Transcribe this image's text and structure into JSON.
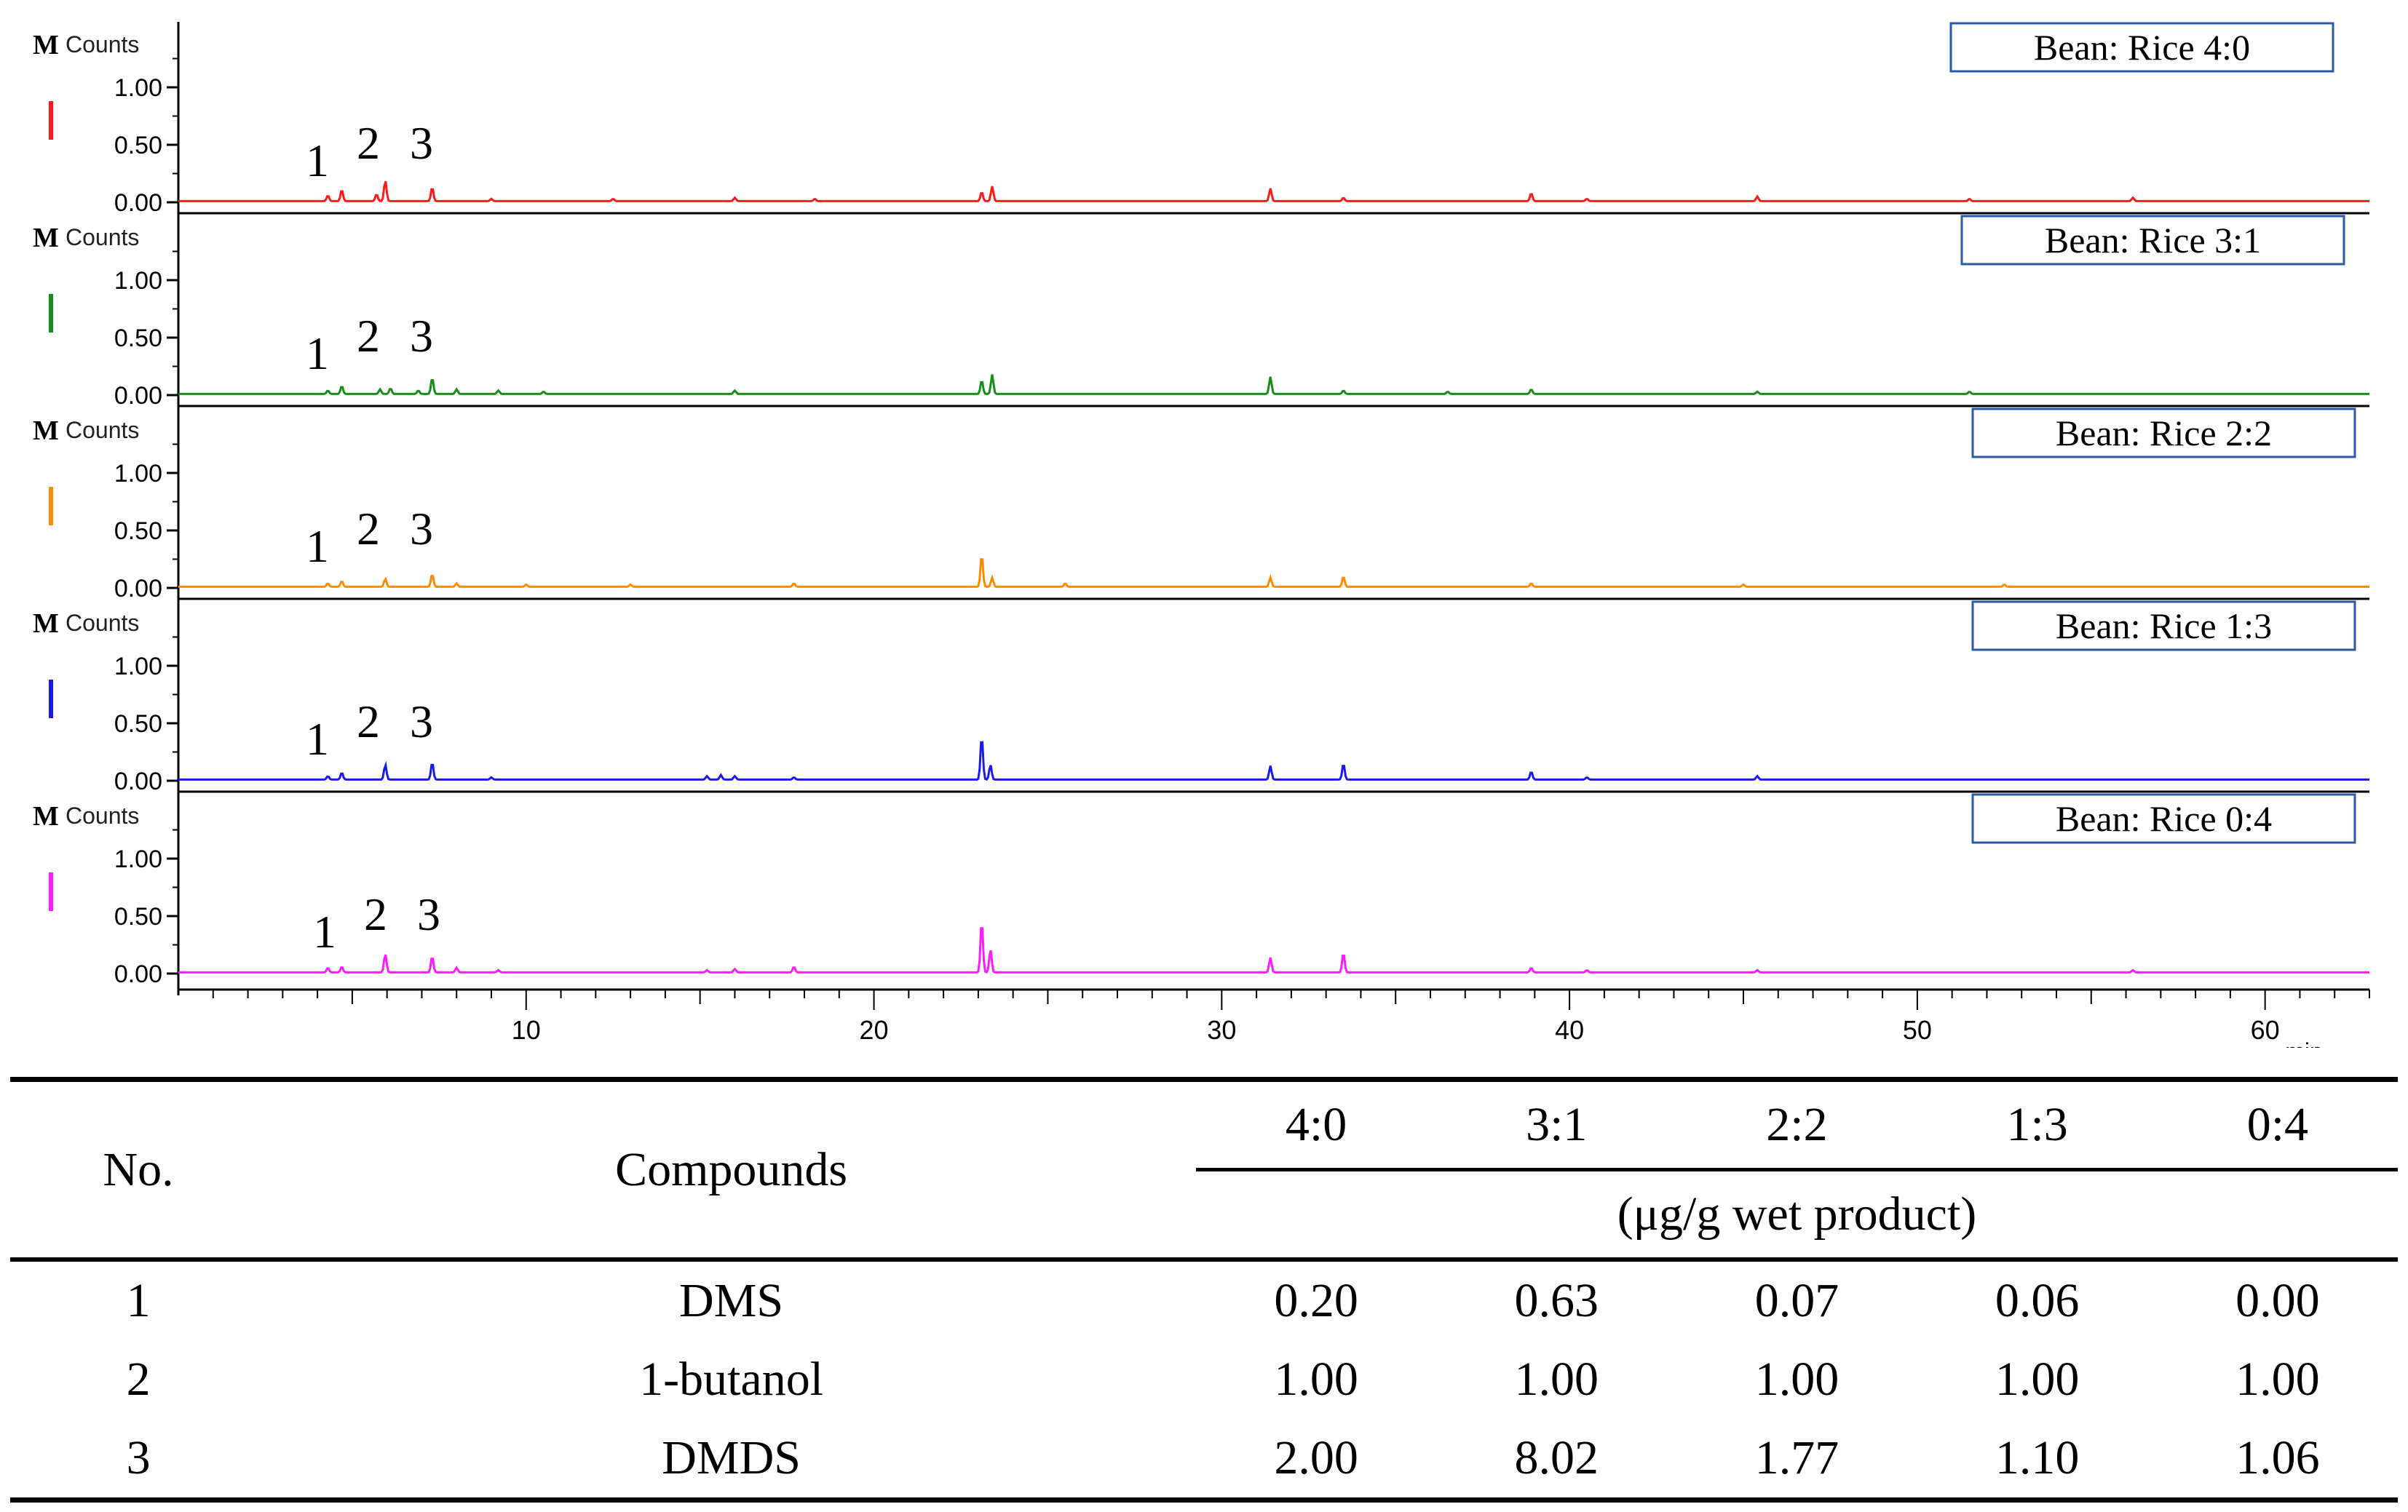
{
  "chart_data": {
    "type": "line",
    "title": "",
    "ylabel": "Counts",
    "ylabel_prefix": "M",
    "y_ticks": [
      "1.00",
      "0.50",
      "0.00"
    ],
    "ylim": [
      0,
      1.2
    ],
    "xlabel": "min",
    "x_ticks": [
      "10",
      "20",
      "30",
      "40",
      "50",
      "60"
    ],
    "xlim": [
      0,
      63
    ],
    "panels": [
      {
        "name": "Bean: Rice 4:0",
        "label": "Bean: Rice 4:0",
        "color": "#ff1a1a",
        "peak_labels": [
          "1",
          "2",
          "3"
        ],
        "peaks": [
          [
            4.3,
            0.05
          ],
          [
            4.7,
            0.1
          ],
          [
            5.7,
            0.06
          ],
          [
            5.95,
            0.18
          ],
          [
            7.3,
            0.12
          ],
          [
            9.0,
            0.02
          ],
          [
            12.5,
            0.02
          ],
          [
            16.0,
            0.03
          ],
          [
            18.3,
            0.02
          ],
          [
            23.1,
            0.08
          ],
          [
            23.4,
            0.13
          ],
          [
            31.4,
            0.11
          ],
          [
            33.5,
            0.03
          ],
          [
            38.9,
            0.07
          ],
          [
            40.5,
            0.02
          ],
          [
            45.4,
            0.04
          ],
          [
            51.5,
            0.02
          ],
          [
            56.2,
            0.03
          ]
        ]
      },
      {
        "name": "Bean: Rice 3:1",
        "label": "Bean: Rice 3:1",
        "color": "#1a8c1a",
        "peak_labels": [
          "1",
          "2",
          "3"
        ],
        "peaks": [
          [
            4.3,
            0.03
          ],
          [
            4.7,
            0.07
          ],
          [
            5.8,
            0.04
          ],
          [
            6.1,
            0.05
          ],
          [
            6.9,
            0.03
          ],
          [
            7.3,
            0.14
          ],
          [
            8.0,
            0.04
          ],
          [
            9.2,
            0.03
          ],
          [
            10.5,
            0.02
          ],
          [
            16.0,
            0.03
          ],
          [
            23.1,
            0.12
          ],
          [
            23.4,
            0.17
          ],
          [
            31.4,
            0.15
          ],
          [
            33.5,
            0.03
          ],
          [
            36.5,
            0.02
          ],
          [
            38.9,
            0.04
          ],
          [
            45.4,
            0.02
          ],
          [
            51.5,
            0.02
          ]
        ]
      },
      {
        "name": "Bean: Rice 2:2",
        "label": "Bean: Rice 2:2",
        "color": "#ff8c00",
        "peak_labels": [
          "1",
          "2",
          "3"
        ],
        "peaks": [
          [
            4.3,
            0.03
          ],
          [
            4.7,
            0.05
          ],
          [
            5.95,
            0.07
          ],
          [
            7.3,
            0.11
          ],
          [
            8.0,
            0.03
          ],
          [
            10.0,
            0.02
          ],
          [
            13.0,
            0.02
          ],
          [
            17.7,
            0.03
          ],
          [
            23.1,
            0.28
          ],
          [
            23.4,
            0.08
          ],
          [
            25.5,
            0.03
          ],
          [
            31.4,
            0.08
          ],
          [
            33.5,
            0.09
          ],
          [
            38.9,
            0.03
          ],
          [
            45.0,
            0.02
          ],
          [
            52.5,
            0.02
          ]
        ]
      },
      {
        "name": "Bean: Rice 1:3",
        "label": "Bean: Rice 1:3",
        "color": "#1a1aee",
        "peak_labels": [
          "1",
          "2",
          "3"
        ],
        "peaks": [
          [
            4.3,
            0.03
          ],
          [
            4.7,
            0.06
          ],
          [
            5.95,
            0.13
          ],
          [
            7.3,
            0.15
          ],
          [
            9.0,
            0.02
          ],
          [
            15.2,
            0.03
          ],
          [
            15.6,
            0.04
          ],
          [
            16.0,
            0.03
          ],
          [
            17.7,
            0.02
          ],
          [
            23.1,
            0.38
          ],
          [
            23.35,
            0.13
          ],
          [
            31.4,
            0.12
          ],
          [
            33.5,
            0.14
          ],
          [
            38.9,
            0.07
          ],
          [
            40.5,
            0.02
          ],
          [
            45.4,
            0.03
          ]
        ]
      },
      {
        "name": "Bean: Rice 0:4",
        "label": "Bean: Rice 0:4",
        "color": "#ff1aff",
        "peak_labels": [
          "1",
          "2",
          "3"
        ],
        "peaks": [
          [
            4.3,
            0.04
          ],
          [
            4.7,
            0.05
          ],
          [
            5.95,
            0.16
          ],
          [
            7.3,
            0.14
          ],
          [
            8.0,
            0.04
          ],
          [
            9.2,
            0.02
          ],
          [
            15.2,
            0.02
          ],
          [
            16.0,
            0.03
          ],
          [
            17.7,
            0.05
          ],
          [
            23.1,
            0.45
          ],
          [
            23.35,
            0.2
          ],
          [
            31.4,
            0.13
          ],
          [
            33.5,
            0.17
          ],
          [
            38.9,
            0.04
          ],
          [
            40.5,
            0.02
          ],
          [
            45.4,
            0.02
          ],
          [
            56.2,
            0.02
          ]
        ]
      }
    ]
  },
  "table": {
    "col_no": "No.",
    "col_compounds": "Compounds",
    "ratios": [
      "4:0",
      "3:1",
      "2:2",
      "1:3",
      "0:4"
    ],
    "unit": "(μg/g wet product)",
    "rows": [
      {
        "no": "1",
        "compound": "DMS",
        "values": [
          "0.20",
          "0.63",
          "0.07",
          "0.06",
          "0.00"
        ]
      },
      {
        "no": "2",
        "compound": "1-butanol",
        "values": [
          "1.00",
          "1.00",
          "1.00",
          "1.00",
          "1.00"
        ]
      },
      {
        "no": "3",
        "compound": "DMDS",
        "values": [
          "2.00",
          "8.02",
          "1.77",
          "1.10",
          "1.06"
        ]
      }
    ]
  }
}
